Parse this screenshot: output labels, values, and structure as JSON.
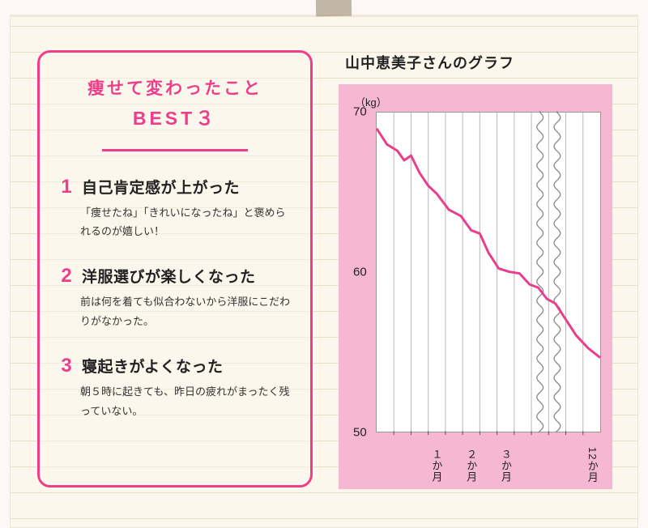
{
  "page_bg": "#fcf7ed",
  "rule_color": "#e7ddc7",
  "tape_color": "#9a8a73",
  "best": {
    "border_color": "#ec3e89",
    "title_line1": "痩せて変わったこと",
    "title_line2": "BEST３",
    "items": [
      {
        "num": "1",
        "title": "自己肯定感が上がった",
        "desc": "「痩せたね」「きれいになったね」と褒められるのが嬉しい！"
      },
      {
        "num": "2",
        "title": "洋服選びが楽しくなった",
        "desc": "前は何を着ても似合わないから洋服にこだわりがなかった。"
      },
      {
        "num": "3",
        "title": "寝起きがよくなった",
        "desc": "朝５時に起きても、昨日の疲れがまったく残っていない。"
      }
    ]
  },
  "chart": {
    "title": "山中恵美子さんのグラフ",
    "type": "line",
    "unit_label": "（kg）",
    "panel_bg": "#f6b7d2",
    "plot_bg": "#ffffff",
    "grid_color": "#b8b8b8",
    "line_color": "#e83e8c",
    "line_width": 3,
    "ylim": [
      50,
      70
    ],
    "yticks": [
      70,
      60,
      50
    ],
    "grid_x_count": 13,
    "x_labels": [
      {
        "at": 3.5,
        "text": "１か月"
      },
      {
        "at": 5.5,
        "text": "２か月"
      },
      {
        "at": 7.5,
        "text": "３か月"
      },
      {
        "at": 12.5,
        "text": "12か月"
      }
    ],
    "break_wiggles_at": [
      9.5,
      10.5
    ],
    "data": [
      {
        "x": 0.0,
        "y": 69.0
      },
      {
        "x": 0.6,
        "y": 68.0
      },
      {
        "x": 1.2,
        "y": 67.6
      },
      {
        "x": 1.6,
        "y": 67.0
      },
      {
        "x": 2.0,
        "y": 67.3
      },
      {
        "x": 2.5,
        "y": 66.2
      },
      {
        "x": 3.0,
        "y": 65.4
      },
      {
        "x": 3.5,
        "y": 64.9
      },
      {
        "x": 4.2,
        "y": 63.9
      },
      {
        "x": 4.9,
        "y": 63.5
      },
      {
        "x": 5.5,
        "y": 62.6
      },
      {
        "x": 6.0,
        "y": 62.4
      },
      {
        "x": 6.5,
        "y": 61.2
      },
      {
        "x": 7.1,
        "y": 60.2
      },
      {
        "x": 7.7,
        "y": 60.0
      },
      {
        "x": 8.3,
        "y": 59.9
      },
      {
        "x": 8.9,
        "y": 59.2
      },
      {
        "x": 9.4,
        "y": 59.0
      },
      {
        "x": 9.9,
        "y": 58.3
      },
      {
        "x": 10.4,
        "y": 58.0
      },
      {
        "x": 11.0,
        "y": 57.0
      },
      {
        "x": 11.6,
        "y": 56.0
      },
      {
        "x": 12.3,
        "y": 55.2
      },
      {
        "x": 13.0,
        "y": 54.6
      }
    ]
  }
}
